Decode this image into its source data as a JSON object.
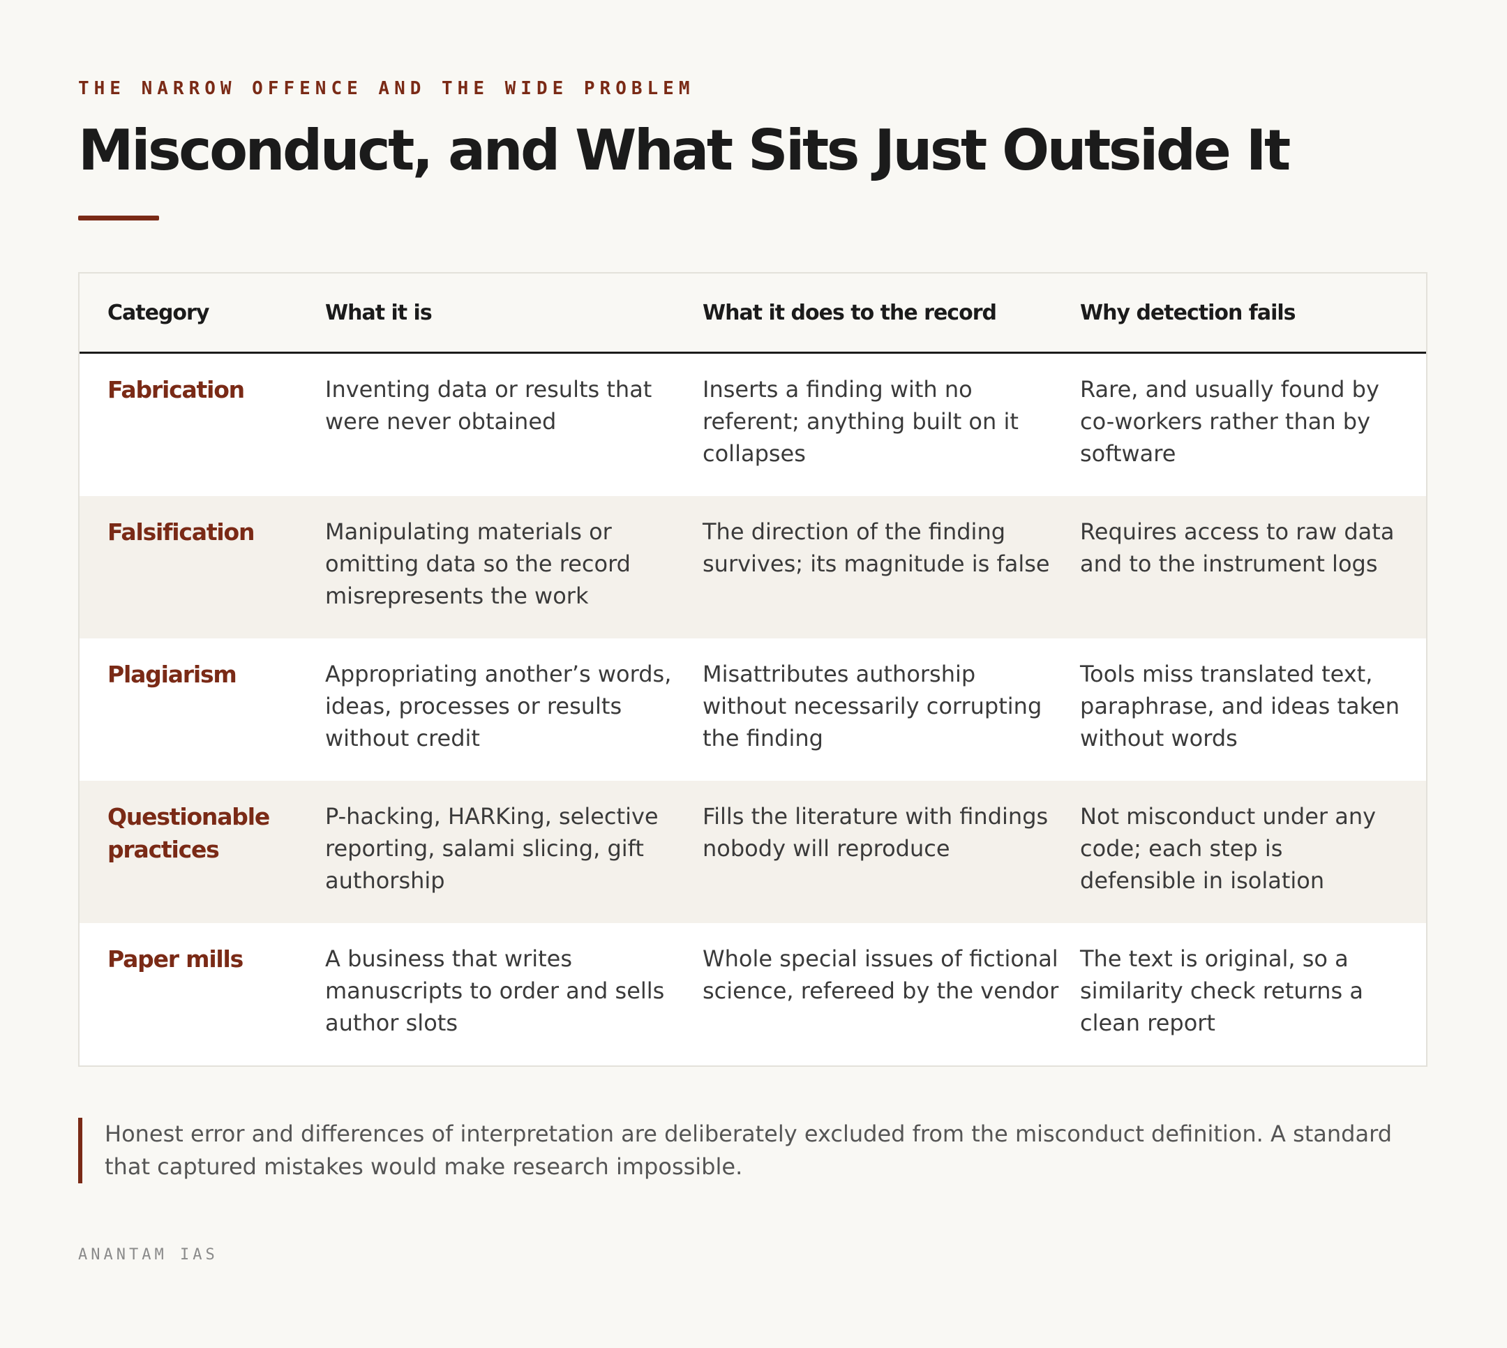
{
  "header": {
    "eyebrow": "THE NARROW OFFENCE AND THE WIDE PROBLEM",
    "title": "Misconduct, and What Sits Just Outside It"
  },
  "table": {
    "columns": [
      "Category",
      "What it is",
      "What it does to the record",
      "Why detection fails"
    ],
    "rows": [
      {
        "category": "Fabrication",
        "what": "Inventing data or results that were never obtained",
        "effect": "Inserts a finding with no referent; anything built on it collapses",
        "detection": "Rare, and usually found by co-workers rather than by software"
      },
      {
        "category": "Falsification",
        "what": "Manipulating materials or omitting data so the record misrepresents the work",
        "effect": "The direction of the finding survives; its magnitude is false",
        "detection": "Requires access to raw data and to the instrument logs"
      },
      {
        "category": "Plagiarism",
        "what": "Appropriating another’s words, ideas, processes or results without credit",
        "effect": "Misattributes authorship without necessarily corrupting the finding",
        "detection": "Tools miss translated text, paraphrase, and ideas taken without words"
      },
      {
        "category": "Questionable practices",
        "what": "P-hacking, HARKing, selective reporting, salami slicing, gift authorship",
        "effect": "Fills the literature with findings nobody will reproduce",
        "detection": "Not misconduct under any code; each step is defensible in isolation"
      },
      {
        "category": "Paper mills",
        "what": "A business that writes manuscripts to order and sells author slots",
        "effect": "Whole special issues of fictional science, refereed by the vendor",
        "detection": "The text is original, so a similarity check returns a clean report"
      }
    ]
  },
  "note": "Honest error and differences of interpretation are deliberately excluded from the misconduct definition. A standard that captured mistakes would make research impossible.",
  "footer": "ANANTAM IAS",
  "colors": {
    "accent": "#7a2a16",
    "background": "#f9f8f4",
    "alt_row": "#f4f1eb"
  }
}
